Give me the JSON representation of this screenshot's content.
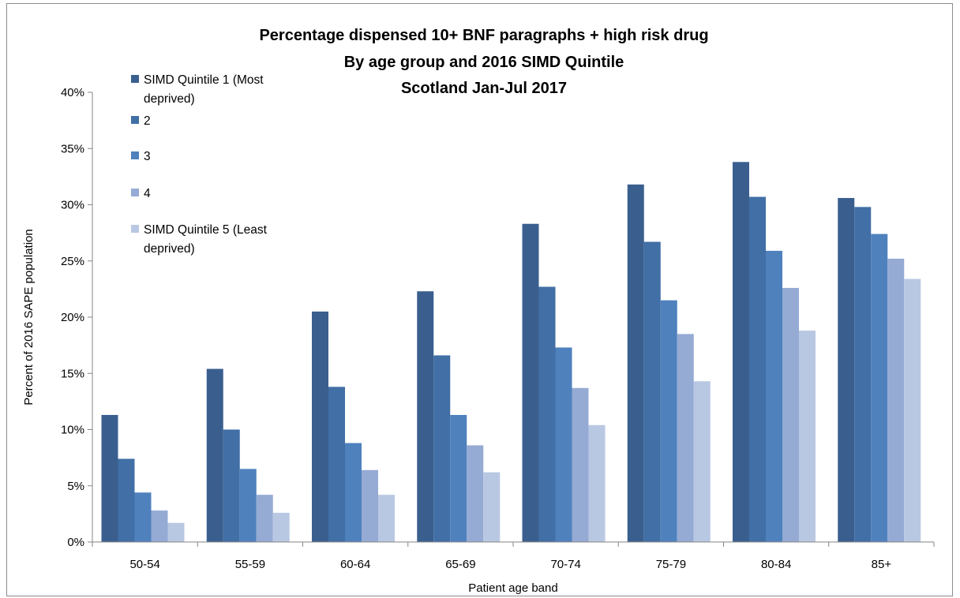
{
  "chart_data": {
    "type": "bar",
    "title_lines": [
      "Percentage  dispensed 10+ BNF paragraphs + high risk drug",
      "By age group and 2016 SIMD Quintile",
      "Scotland Jan-Jul 2017"
    ],
    "xlabel": "Patient age band",
    "ylabel": "Percent of 2016  SAPE population",
    "categories": [
      "50-54",
      "55-59",
      "60-64",
      "65-69",
      "70-74",
      "75-79",
      "80-84",
      "85+"
    ],
    "ylim": [
      0,
      40
    ],
    "y_ticks": [
      0,
      5,
      10,
      15,
      20,
      25,
      30,
      35,
      40
    ],
    "y_tick_labels": [
      "0%",
      "5%",
      "10%",
      "15%",
      "20%",
      "25%",
      "30%",
      "35%",
      "40%"
    ],
    "legend_position": "top-left",
    "grid": false,
    "series": [
      {
        "name_lines": [
          "SIMD Quintile 1 (Most",
          "deprived)"
        ],
        "color": "#3a5f8f",
        "values": [
          11.3,
          15.4,
          20.5,
          22.3,
          28.3,
          31.8,
          33.8,
          30.6
        ]
      },
      {
        "name_lines": [
          "2"
        ],
        "color": "#416fa6",
        "values": [
          7.4,
          10.0,
          13.8,
          16.6,
          22.7,
          26.7,
          30.7,
          29.8
        ]
      },
      {
        "name_lines": [
          "3"
        ],
        "color": "#4f81bd",
        "values": [
          4.4,
          6.5,
          8.8,
          11.3,
          17.3,
          21.5,
          25.9,
          27.4
        ]
      },
      {
        "name_lines": [
          "4"
        ],
        "color": "#95abd4",
        "values": [
          2.8,
          4.2,
          6.4,
          8.6,
          13.7,
          18.5,
          22.6,
          25.2
        ]
      },
      {
        "name_lines": [
          "SIMD Quintile 5 (Least",
          "deprived)"
        ],
        "color": "#b9c8e2",
        "values": [
          1.7,
          2.6,
          4.2,
          6.2,
          10.4,
          14.3,
          18.8,
          23.4
        ]
      }
    ]
  }
}
